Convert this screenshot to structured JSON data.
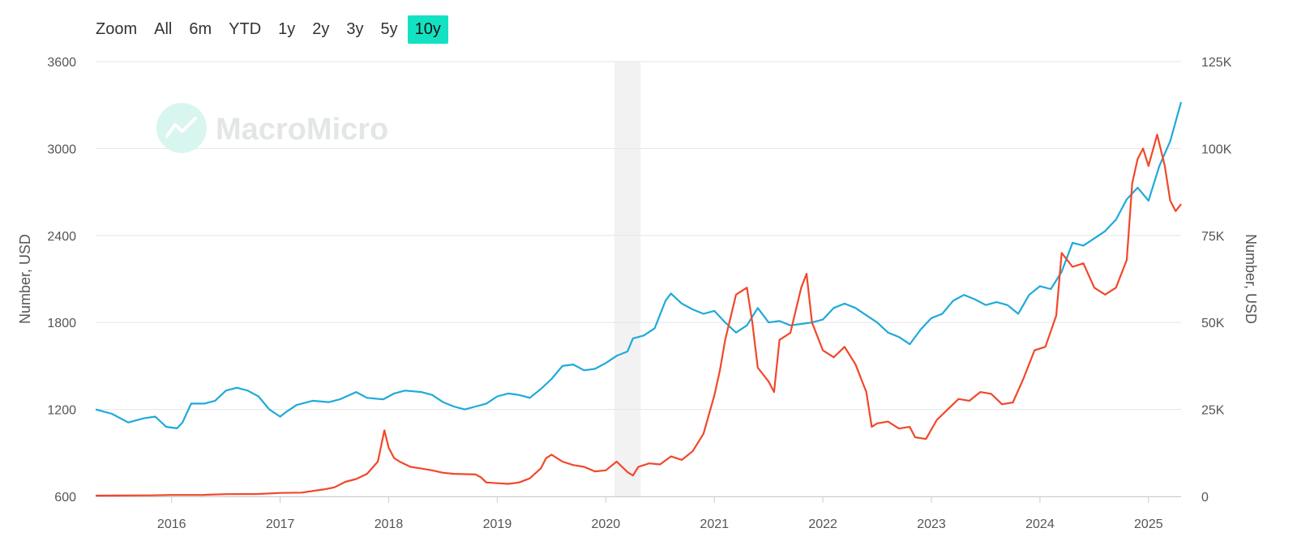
{
  "zoom": {
    "label": "Zoom",
    "buttons": [
      "All",
      "6m",
      "YTD",
      "1y",
      "2y",
      "3y",
      "5y",
      "10y"
    ],
    "active": "10y"
  },
  "watermark": {
    "text": "MacroMicro"
  },
  "colors": {
    "series1": "#1eaad9",
    "series2": "#f1472a",
    "accent": "#13e2c2",
    "grid": "#e6e6e6",
    "shade": "#f2f2f2"
  },
  "chart_data": {
    "type": "line",
    "x_range": [
      2015.3,
      2025.3
    ],
    "x_ticks": [
      "2016",
      "2017",
      "2018",
      "2019",
      "2020",
      "2021",
      "2022",
      "2023",
      "2024",
      "2025"
    ],
    "y_left": {
      "title": "Number, USD",
      "range": [
        600,
        3600
      ],
      "ticks": [
        "600",
        "1200",
        "1800",
        "2400",
        "3000",
        "3600"
      ]
    },
    "y_right": {
      "title": "Number, USD",
      "range": [
        0,
        125000
      ],
      "ticks": [
        "0",
        "25K",
        "50K",
        "75K",
        "100K",
        "125K"
      ]
    },
    "shaded_range": [
      2020.08,
      2020.32
    ],
    "grid": true,
    "series": [
      {
        "axis": "left",
        "color": "#1eaad9",
        "points": [
          [
            2015.3,
            1200
          ],
          [
            2015.45,
            1170
          ],
          [
            2015.6,
            1110
          ],
          [
            2015.75,
            1140
          ],
          [
            2015.85,
            1150
          ],
          [
            2015.95,
            1080
          ],
          [
            2016.05,
            1070
          ],
          [
            2016.1,
            1110
          ],
          [
            2016.18,
            1240
          ],
          [
            2016.3,
            1240
          ],
          [
            2016.4,
            1260
          ],
          [
            2016.5,
            1330
          ],
          [
            2016.6,
            1350
          ],
          [
            2016.7,
            1330
          ],
          [
            2016.8,
            1290
          ],
          [
            2016.9,
            1200
          ],
          [
            2017.0,
            1150
          ],
          [
            2017.05,
            1180
          ],
          [
            2017.15,
            1230
          ],
          [
            2017.3,
            1260
          ],
          [
            2017.45,
            1250
          ],
          [
            2017.55,
            1270
          ],
          [
            2017.7,
            1320
          ],
          [
            2017.8,
            1280
          ],
          [
            2017.95,
            1270
          ],
          [
            2018.05,
            1310
          ],
          [
            2018.15,
            1330
          ],
          [
            2018.3,
            1320
          ],
          [
            2018.4,
            1300
          ],
          [
            2018.5,
            1250
          ],
          [
            2018.6,
            1220
          ],
          [
            2018.7,
            1200
          ],
          [
            2018.8,
            1220
          ],
          [
            2018.9,
            1240
          ],
          [
            2019.0,
            1290
          ],
          [
            2019.1,
            1310
          ],
          [
            2019.2,
            1300
          ],
          [
            2019.3,
            1280
          ],
          [
            2019.4,
            1340
          ],
          [
            2019.5,
            1410
          ],
          [
            2019.6,
            1500
          ],
          [
            2019.7,
            1510
          ],
          [
            2019.8,
            1470
          ],
          [
            2019.9,
            1480
          ],
          [
            2020.0,
            1520
          ],
          [
            2020.1,
            1570
          ],
          [
            2020.2,
            1600
          ],
          [
            2020.25,
            1690
          ],
          [
            2020.35,
            1710
          ],
          [
            2020.45,
            1760
          ],
          [
            2020.55,
            1950
          ],
          [
            2020.6,
            2000
          ],
          [
            2020.7,
            1930
          ],
          [
            2020.8,
            1890
          ],
          [
            2020.9,
            1860
          ],
          [
            2021.0,
            1880
          ],
          [
            2021.1,
            1800
          ],
          [
            2021.2,
            1730
          ],
          [
            2021.3,
            1780
          ],
          [
            2021.4,
            1900
          ],
          [
            2021.5,
            1800
          ],
          [
            2021.6,
            1810
          ],
          [
            2021.7,
            1780
          ],
          [
            2021.8,
            1790
          ],
          [
            2021.9,
            1800
          ],
          [
            2022.0,
            1820
          ],
          [
            2022.1,
            1900
          ],
          [
            2022.2,
            1930
          ],
          [
            2022.3,
            1900
          ],
          [
            2022.4,
            1850
          ],
          [
            2022.5,
            1800
          ],
          [
            2022.6,
            1730
          ],
          [
            2022.7,
            1700
          ],
          [
            2022.8,
            1650
          ],
          [
            2022.9,
            1750
          ],
          [
            2023.0,
            1830
          ],
          [
            2023.1,
            1860
          ],
          [
            2023.2,
            1950
          ],
          [
            2023.3,
            1990
          ],
          [
            2023.4,
            1960
          ],
          [
            2023.5,
            1920
          ],
          [
            2023.6,
            1940
          ],
          [
            2023.7,
            1920
          ],
          [
            2023.8,
            1860
          ],
          [
            2023.9,
            1990
          ],
          [
            2024.0,
            2050
          ],
          [
            2024.1,
            2030
          ],
          [
            2024.2,
            2150
          ],
          [
            2024.3,
            2350
          ],
          [
            2024.4,
            2330
          ],
          [
            2024.5,
            2380
          ],
          [
            2024.6,
            2430
          ],
          [
            2024.7,
            2510
          ],
          [
            2024.8,
            2650
          ],
          [
            2024.9,
            2730
          ],
          [
            2025.0,
            2640
          ],
          [
            2025.1,
            2880
          ],
          [
            2025.2,
            3050
          ],
          [
            2025.3,
            3320
          ]
        ]
      },
      {
        "axis": "right",
        "color": "#f1472a",
        "points": [
          [
            2015.3,
            230
          ],
          [
            2015.5,
            260
          ],
          [
            2015.8,
            300
          ],
          [
            2016.0,
            430
          ],
          [
            2016.3,
            450
          ],
          [
            2016.5,
            650
          ],
          [
            2016.8,
            700
          ],
          [
            2017.0,
            1000
          ],
          [
            2017.2,
            1100
          ],
          [
            2017.4,
            2000
          ],
          [
            2017.5,
            2600
          ],
          [
            2017.6,
            4200
          ],
          [
            2017.7,
            5000
          ],
          [
            2017.8,
            6500
          ],
          [
            2017.9,
            10000
          ],
          [
            2017.96,
            19000
          ],
          [
            2018.0,
            14000
          ],
          [
            2018.05,
            11000
          ],
          [
            2018.1,
            10000
          ],
          [
            2018.2,
            8500
          ],
          [
            2018.3,
            8000
          ],
          [
            2018.4,
            7500
          ],
          [
            2018.5,
            6800
          ],
          [
            2018.6,
            6500
          ],
          [
            2018.7,
            6400
          ],
          [
            2018.8,
            6300
          ],
          [
            2018.85,
            5500
          ],
          [
            2018.9,
            4000
          ],
          [
            2019.0,
            3800
          ],
          [
            2019.1,
            3600
          ],
          [
            2019.2,
            4000
          ],
          [
            2019.3,
            5200
          ],
          [
            2019.4,
            8000
          ],
          [
            2019.45,
            11000
          ],
          [
            2019.5,
            12000
          ],
          [
            2019.6,
            10000
          ],
          [
            2019.7,
            9000
          ],
          [
            2019.8,
            8500
          ],
          [
            2019.9,
            7200
          ],
          [
            2020.0,
            7500
          ],
          [
            2020.1,
            10000
          ],
          [
            2020.2,
            7000
          ],
          [
            2020.25,
            6000
          ],
          [
            2020.3,
            8500
          ],
          [
            2020.4,
            9500
          ],
          [
            2020.5,
            9200
          ],
          [
            2020.6,
            11500
          ],
          [
            2020.7,
            10500
          ],
          [
            2020.8,
            13000
          ],
          [
            2020.9,
            18000
          ],
          [
            2021.0,
            29000
          ],
          [
            2021.05,
            36000
          ],
          [
            2021.1,
            45000
          ],
          [
            2021.2,
            58000
          ],
          [
            2021.3,
            60000
          ],
          [
            2021.35,
            50000
          ],
          [
            2021.4,
            37000
          ],
          [
            2021.5,
            33000
          ],
          [
            2021.55,
            30000
          ],
          [
            2021.6,
            45000
          ],
          [
            2021.7,
            47000
          ],
          [
            2021.8,
            60000
          ],
          [
            2021.85,
            64000
          ],
          [
            2021.9,
            50000
          ],
          [
            2022.0,
            42000
          ],
          [
            2022.1,
            40000
          ],
          [
            2022.2,
            43000
          ],
          [
            2022.3,
            38000
          ],
          [
            2022.4,
            30000
          ],
          [
            2022.45,
            20000
          ],
          [
            2022.5,
            21000
          ],
          [
            2022.6,
            21500
          ],
          [
            2022.7,
            19500
          ],
          [
            2022.8,
            20000
          ],
          [
            2022.85,
            17000
          ],
          [
            2022.95,
            16500
          ],
          [
            2023.05,
            22000
          ],
          [
            2023.15,
            25000
          ],
          [
            2023.25,
            28000
          ],
          [
            2023.35,
            27500
          ],
          [
            2023.45,
            30000
          ],
          [
            2023.55,
            29500
          ],
          [
            2023.65,
            26500
          ],
          [
            2023.75,
            27000
          ],
          [
            2023.85,
            34000
          ],
          [
            2023.95,
            42000
          ],
          [
            2024.05,
            43000
          ],
          [
            2024.15,
            52000
          ],
          [
            2024.2,
            70000
          ],
          [
            2024.3,
            66000
          ],
          [
            2024.4,
            67000
          ],
          [
            2024.5,
            60000
          ],
          [
            2024.6,
            58000
          ],
          [
            2024.7,
            60000
          ],
          [
            2024.8,
            68000
          ],
          [
            2024.85,
            90000
          ],
          [
            2024.9,
            97000
          ],
          [
            2024.95,
            100000
          ],
          [
            2025.0,
            95000
          ],
          [
            2025.08,
            104000
          ],
          [
            2025.15,
            95000
          ],
          [
            2025.2,
            85000
          ],
          [
            2025.25,
            82000
          ],
          [
            2025.3,
            84000
          ]
        ]
      }
    ]
  }
}
